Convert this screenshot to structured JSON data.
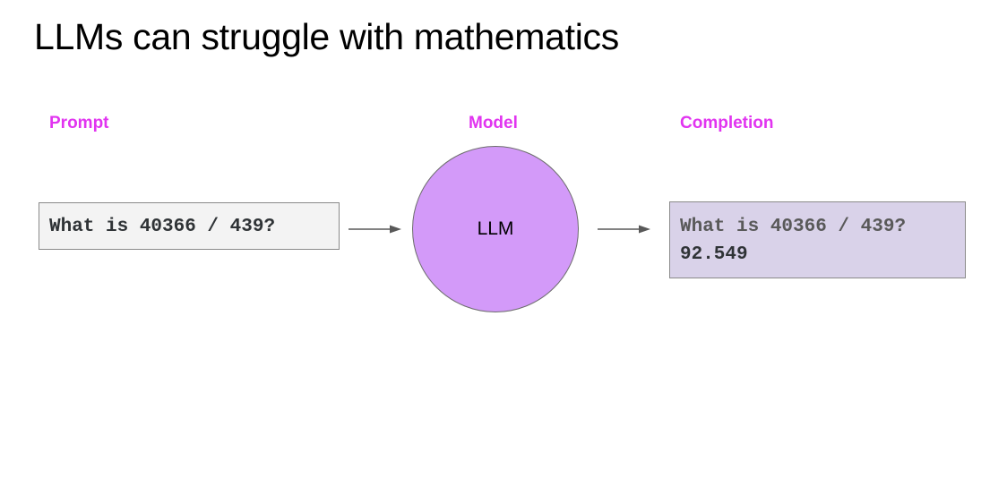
{
  "title": "LLMs can struggle with mathematics",
  "labels": {
    "prompt": "Prompt",
    "model": "Model",
    "completion": "Completion"
  },
  "prompt_text": "What is 40366 / 439?",
  "model_text": "LLM",
  "completion": {
    "line1": "What is 40366 / 439?",
    "line2": "92.549"
  },
  "colors": {
    "label": "#e134f0",
    "circle_fill": "#d39af9",
    "completion_bg": "#d9d2e9",
    "prompt_bg": "#f3f3f3",
    "arrow": "#595959",
    "completion_prompt_text": "#595959",
    "completion_answer_text": "#2f3336"
  }
}
